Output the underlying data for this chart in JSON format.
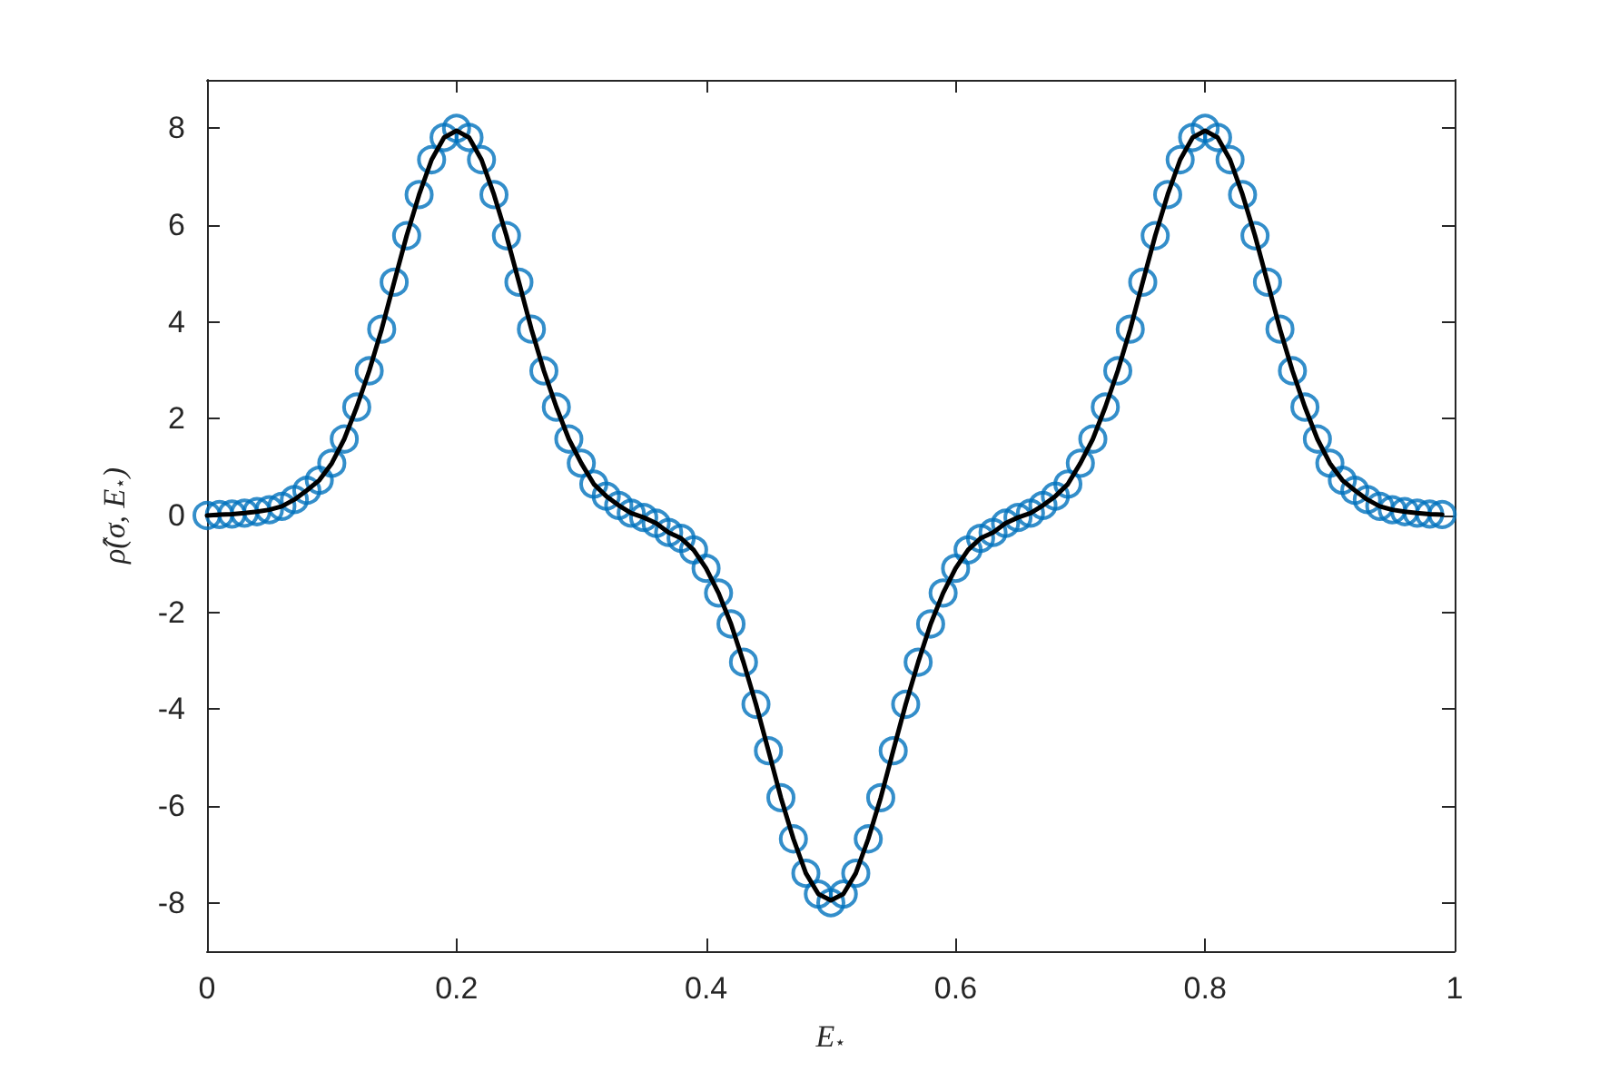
{
  "chart_data": {
    "type": "scatter",
    "xlabel": "E$_{⋆}$",
    "ylabel": "ρ̂(σ, E$_{⋆}$)",
    "x": [
      0,
      0.01,
      0.02,
      0.03,
      0.04,
      0.05,
      0.06,
      0.07,
      0.08,
      0.09,
      0.1,
      0.11,
      0.12,
      0.13,
      0.14,
      0.15,
      0.16,
      0.17,
      0.18,
      0.19,
      0.2,
      0.21,
      0.22,
      0.23,
      0.24,
      0.25,
      0.26,
      0.27,
      0.28,
      0.29,
      0.3,
      0.31,
      0.32,
      0.33,
      0.34,
      0.35,
      0.36,
      0.37,
      0.38,
      0.39,
      0.4,
      0.41,
      0.42,
      0.43,
      0.44,
      0.45,
      0.46,
      0.47,
      0.48,
      0.49,
      0.5,
      0.51,
      0.52,
      0.53,
      0.54,
      0.55,
      0.56,
      0.57,
      0.58,
      0.59,
      0.6,
      0.61,
      0.62,
      0.63,
      0.64,
      0.65,
      0.66,
      0.67,
      0.68,
      0.69,
      0.7,
      0.71,
      0.72,
      0.73,
      0.74,
      0.75,
      0.76,
      0.77,
      0.78,
      0.79,
      0.8,
      0.81,
      0.82,
      0.83,
      0.84,
      0.85,
      0.86,
      0.87,
      0.88,
      0.89,
      0.9,
      0.91,
      0.92,
      0.93,
      0.94,
      0.95,
      0.96,
      0.97,
      0.98,
      0.99
    ],
    "series": [
      {
        "color": "#0072bd",
        "marker": "circle",
        "values": [
          0,
          0.02,
          0.03,
          0.05,
          0.08,
          0.12,
          0.19,
          0.33,
          0.52,
          0.73,
          1.08,
          1.58,
          2.24,
          2.99,
          3.85,
          4.82,
          5.78,
          6.63,
          7.35,
          7.81,
          8.0,
          7.81,
          7.35,
          6.63,
          5.78,
          4.82,
          3.85,
          2.99,
          2.24,
          1.58,
          1.08,
          0.65,
          0.4,
          0.21,
          0.05,
          -0.04,
          -0.16,
          -0.35,
          -0.47,
          -0.71,
          -1.09,
          -1.6,
          -2.24,
          -3.03,
          -3.9,
          -4.86,
          -5.83,
          -6.68,
          -7.39,
          -7.82,
          -8.0,
          -7.82,
          -7.39,
          -6.68,
          -5.83,
          -4.86,
          -3.9,
          -3.03,
          -2.24,
          -1.6,
          -1.09,
          -0.71,
          -0.47,
          -0.35,
          -0.16,
          -0.04,
          0.05,
          0.21,
          0.4,
          0.65,
          1.08,
          1.58,
          2.24,
          2.99,
          3.85,
          4.82,
          5.78,
          6.63,
          7.35,
          7.81,
          8.0,
          7.81,
          7.35,
          6.63,
          5.78,
          4.82,
          3.85,
          2.99,
          2.24,
          1.58,
          1.08,
          0.73,
          0.52,
          0.33,
          0.19,
          0.12,
          0.08,
          0.05,
          0.03,
          0.02
        ]
      },
      {
        "type": "line",
        "color": "#000000",
        "line_style": "solid",
        "values": [
          0,
          0.02,
          0.03,
          0.05,
          0.08,
          0.12,
          0.19,
          0.33,
          0.52,
          0.73,
          1.08,
          1.58,
          2.24,
          2.99,
          3.85,
          4.82,
          5.78,
          6.63,
          7.35,
          7.81,
          7.95,
          7.81,
          7.35,
          6.63,
          5.78,
          4.82,
          3.85,
          2.99,
          2.24,
          1.58,
          1.08,
          0.65,
          0.4,
          0.21,
          0.05,
          -0.04,
          -0.16,
          -0.35,
          -0.47,
          -0.71,
          -1.09,
          -1.6,
          -2.24,
          -3.03,
          -3.9,
          -4.86,
          -5.83,
          -6.68,
          -7.39,
          -7.82,
          -7.95,
          -7.82,
          -7.39,
          -6.68,
          -5.83,
          -4.86,
          -3.9,
          -3.03,
          -2.24,
          -1.6,
          -1.09,
          -0.71,
          -0.47,
          -0.35,
          -0.16,
          -0.04,
          0.05,
          0.21,
          0.4,
          0.65,
          1.08,
          1.58,
          2.24,
          2.99,
          3.85,
          4.82,
          5.78,
          6.63,
          7.35,
          7.81,
          7.95,
          7.81,
          7.35,
          6.63,
          5.78,
          4.82,
          3.85,
          2.99,
          2.24,
          1.58,
          1.08,
          0.73,
          0.52,
          0.33,
          0.19,
          0.12,
          0.08,
          0.05,
          0.03,
          0.02
        ]
      }
    ],
    "xlim": [
      0,
      1
    ],
    "xticks": [
      0,
      0.2,
      0.4,
      0.6,
      0.8,
      1
    ],
    "ylim": [
      -9,
      9
    ],
    "yticks": [
      -8,
      -6,
      -4,
      -2,
      0,
      2,
      4,
      6,
      8
    ],
    "grid": false
  }
}
